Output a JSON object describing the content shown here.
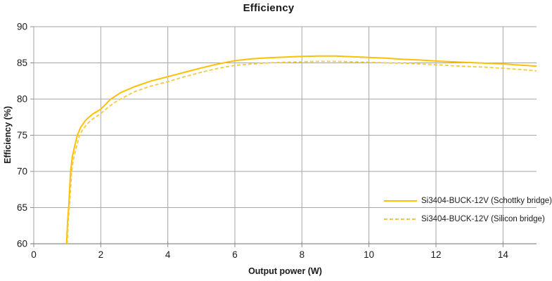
{
  "chart_data": {
    "type": "line",
    "title": "Efficiency",
    "xlabel": "Output power (W)",
    "ylabel": "Efficiency (%)",
    "xlim": [
      0,
      15
    ],
    "ylim": [
      60,
      90
    ],
    "x_ticks": [
      0,
      2,
      4,
      6,
      8,
      10,
      12,
      14
    ],
    "x_tick_labels": [
      "0",
      "2",
      "4",
      "6",
      "8",
      "10",
      "12",
      "14"
    ],
    "y_ticks": [
      60,
      65,
      70,
      75,
      80,
      85,
      90
    ],
    "y_tick_labels": [
      "60",
      "65",
      "70",
      "75",
      "80",
      "85",
      "90"
    ],
    "grid": true,
    "legend_position": "inside-bottom-right",
    "colors": {
      "gridline": "#a6a6a6",
      "axis": "#8c8c8c",
      "text": "#1a1a1a",
      "background": "#ffffff"
    },
    "series": [
      {
        "name": "Si3404-BUCK-12V (Schottky bridge)",
        "style": "solid",
        "color": "#fdc005",
        "points": [
          [
            0.98,
            60
          ],
          [
            1.01,
            63
          ],
          [
            1.04,
            65
          ],
          [
            1.07,
            67.5
          ],
          [
            1.1,
            70
          ],
          [
            1.15,
            72
          ],
          [
            1.22,
            73.5
          ],
          [
            1.3,
            75
          ],
          [
            1.4,
            76.1
          ],
          [
            1.55,
            77.1
          ],
          [
            1.75,
            77.9
          ],
          [
            2.0,
            78.6
          ],
          [
            2.3,
            80.0
          ],
          [
            2.6,
            80.9
          ],
          [
            3.0,
            81.7
          ],
          [
            3.5,
            82.5
          ],
          [
            4.0,
            83.1
          ],
          [
            4.5,
            83.7
          ],
          [
            5.0,
            84.3
          ],
          [
            5.5,
            84.85
          ],
          [
            6.0,
            85.3
          ],
          [
            6.5,
            85.55
          ],
          [
            7.0,
            85.7
          ],
          [
            7.5,
            85.8
          ],
          [
            8.0,
            85.9
          ],
          [
            8.5,
            85.95
          ],
          [
            9.0,
            85.95
          ],
          [
            9.5,
            85.85
          ],
          [
            10.0,
            85.75
          ],
          [
            10.5,
            85.65
          ],
          [
            11.0,
            85.5
          ],
          [
            11.5,
            85.4
          ],
          [
            12.0,
            85.25
          ],
          [
            12.5,
            85.15
          ],
          [
            13.0,
            85.05
          ],
          [
            13.5,
            84.95
          ],
          [
            14.0,
            84.85
          ],
          [
            14.5,
            84.7
          ],
          [
            15.0,
            84.55
          ]
        ]
      },
      {
        "name": "Si3404-BUCK-12V (Silicon bridge)",
        "style": "dashed",
        "color": "#f6ca3d",
        "points": [
          [
            1.0,
            60
          ],
          [
            1.03,
            63
          ],
          [
            1.06,
            65
          ],
          [
            1.1,
            67.5
          ],
          [
            1.13,
            70
          ],
          [
            1.19,
            71.8
          ],
          [
            1.27,
            73.3
          ],
          [
            1.35,
            74.8
          ],
          [
            1.45,
            75.7
          ],
          [
            1.6,
            76.6
          ],
          [
            1.8,
            77.4
          ],
          [
            2.0,
            78.0
          ],
          [
            2.25,
            79.0
          ],
          [
            2.5,
            79.8
          ],
          [
            3.0,
            81.0
          ],
          [
            3.5,
            81.8
          ],
          [
            4.0,
            82.4
          ],
          [
            4.5,
            83.1
          ],
          [
            5.0,
            83.7
          ],
          [
            5.5,
            84.25
          ],
          [
            6.0,
            84.65
          ],
          [
            6.5,
            84.85
          ],
          [
            7.0,
            85.0
          ],
          [
            7.5,
            85.1
          ],
          [
            8.0,
            85.15
          ],
          [
            8.5,
            85.2
          ],
          [
            9.0,
            85.2
          ],
          [
            9.5,
            85.15
          ],
          [
            10.0,
            85.1
          ],
          [
            10.5,
            85.0
          ],
          [
            11.0,
            84.95
          ],
          [
            11.5,
            84.85
          ],
          [
            12.0,
            84.75
          ],
          [
            12.5,
            84.6
          ],
          [
            13.0,
            84.5
          ],
          [
            13.5,
            84.4
          ],
          [
            14.0,
            84.25
          ],
          [
            14.5,
            84.1
          ],
          [
            15.0,
            83.9
          ]
        ]
      }
    ]
  }
}
